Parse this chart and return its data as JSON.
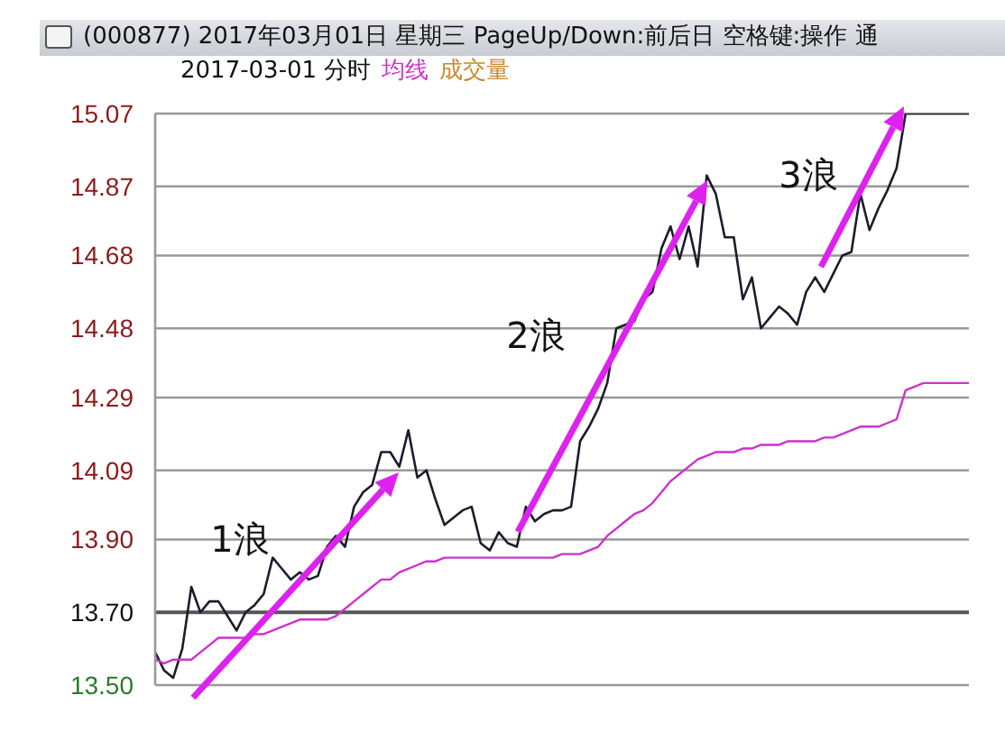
{
  "chart_data": {
    "type": "line",
    "title": "(000877) 2017年03月01日 星期三 PageUp/Down:前后日 空格键:操作 通",
    "subtitle": "2017-03-01 分时",
    "categories": [
      null,
      null,
      null,
      null,
      null,
      null,
      null,
      null,
      null,
      null,
      null,
      null,
      null,
      null,
      null,
      null,
      null,
      null,
      null,
      null,
      null,
      null,
      null,
      null,
      null,
      null,
      null,
      null,
      null,
      null,
      null,
      null,
      null,
      null,
      null,
      null,
      null,
      null,
      null,
      null,
      null,
      null,
      null,
      null,
      null,
      null,
      null,
      null,
      null,
      null,
      null,
      null,
      null,
      null,
      null,
      null,
      null,
      null,
      null,
      null,
      null,
      null,
      null,
      null,
      null,
      null,
      null,
      null,
      null,
      null,
      null,
      null,
      null,
      null,
      null,
      null,
      null,
      null,
      null,
      null,
      null,
      null,
      null,
      null,
      null,
      null,
      null,
      null,
      null,
      null,
      null
    ],
    "series": [
      {
        "color": "#1c1c2c",
        "values": [
          13.59,
          13.54,
          13.52,
          13.6,
          13.77,
          13.7,
          13.73,
          13.73,
          13.69,
          13.65,
          13.7,
          13.72,
          13.75,
          13.85,
          13.82,
          13.79,
          13.81,
          13.79,
          13.8,
          13.88,
          13.91,
          13.88,
          13.99,
          14.03,
          14.05,
          14.14,
          14.14,
          14.1,
          14.2,
          14.07,
          14.09,
          14.01,
          13.94,
          13.96,
          13.98,
          13.99,
          13.89,
          13.87,
          13.92,
          13.89,
          13.88,
          13.99,
          13.95,
          13.97,
          13.98,
          13.98,
          13.99,
          14.17,
          14.21,
          14.26,
          14.33,
          14.48,
          14.49,
          14.5,
          14.56,
          14.58,
          14.7,
          14.76,
          14.67,
          14.76,
          14.65,
          14.9,
          14.85,
          14.73,
          14.73,
          14.56,
          14.62,
          14.48,
          14.51,
          14.54,
          14.52,
          14.49,
          14.58,
          14.62,
          14.58,
          14.63,
          14.68,
          14.69,
          14.85,
          14.75,
          14.81,
          14.86,
          14.92,
          15.07,
          15.07,
          15.07,
          15.07,
          15.07,
          15.07,
          15.07,
          15.07
        ]
      },
      {
        "name": "均线",
        "color": "#cc33cc",
        "values": [
          13.57,
          13.56,
          13.57,
          13.57,
          13.57,
          13.59,
          13.61,
          13.63,
          13.63,
          13.63,
          13.63,
          13.64,
          13.64,
          13.65,
          13.66,
          13.67,
          13.68,
          13.68,
          13.68,
          13.68,
          13.69,
          13.71,
          13.73,
          13.75,
          13.77,
          13.79,
          13.79,
          13.81,
          13.82,
          13.83,
          13.84,
          13.84,
          13.85,
          13.85,
          13.85,
          13.85,
          13.85,
          13.85,
          13.85,
          13.85,
          13.85,
          13.85,
          13.85,
          13.85,
          13.85,
          13.86,
          13.86,
          13.86,
          13.87,
          13.88,
          13.91,
          13.93,
          13.95,
          13.97,
          13.98,
          14.0,
          14.03,
          14.06,
          14.08,
          14.1,
          14.12,
          14.13,
          14.14,
          14.14,
          14.14,
          14.15,
          14.15,
          14.16,
          14.16,
          14.16,
          14.17,
          14.17,
          14.17,
          14.17,
          14.18,
          14.18,
          14.19,
          14.2,
          14.21,
          14.21,
          14.21,
          14.22,
          14.23,
          14.31,
          14.32,
          14.33,
          14.33,
          14.33,
          14.33,
          14.33,
          14.33
        ]
      }
    ],
    "ylim": [
      13.5,
      15.07
    ],
    "yticks": [
      {
        "value": 13.5,
        "label": "13.50"
      },
      {
        "value": 13.7,
        "label": "13.70"
      },
      {
        "value": 13.9,
        "label": "13.90"
      },
      14.09,
      14.29,
      14.48,
      14.68,
      14.87,
      15.07
    ],
    "ref_lines": [
      {
        "axis": "y",
        "value": 13.7,
        "color": "#555555"
      }
    ],
    "grid": "y",
    "legend": "top left",
    "marker": "none",
    "line_style": "solid",
    "tick_labels": "y",
    "annotations": [
      "成交量",
      "1浪",
      "2浪",
      "3浪"
    ]
  }
}
